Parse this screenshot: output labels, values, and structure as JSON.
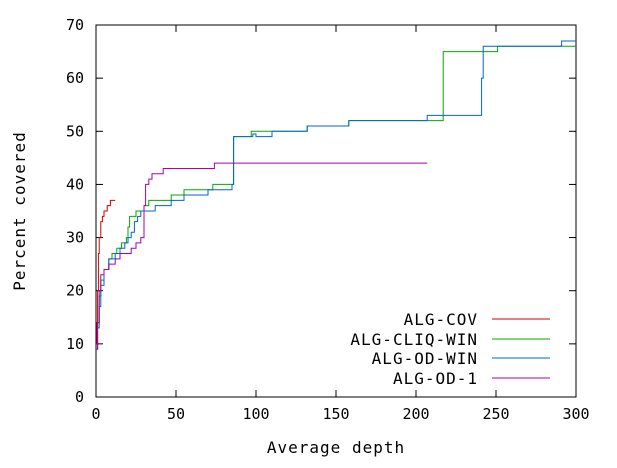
{
  "chart_data": {
    "type": "line",
    "step": true,
    "title": "",
    "xlabel": "Average depth",
    "ylabel": "Percent covered",
    "xlim": [
      0,
      300
    ],
    "ylim": [
      0,
      70
    ],
    "xticks": [
      0,
      50,
      100,
      150,
      200,
      250,
      300
    ],
    "yticks": [
      0,
      10,
      20,
      30,
      40,
      50,
      60,
      70
    ],
    "grid": false,
    "legend_position": "bottom-right",
    "series": [
      {
        "name": "ALG-COV",
        "color": "#cc0000",
        "points": [
          [
            0,
            10
          ],
          [
            0.5,
            14
          ],
          [
            1,
            20
          ],
          [
            1.5,
            27
          ],
          [
            2,
            30
          ],
          [
            3,
            33
          ],
          [
            4,
            34
          ],
          [
            5,
            35
          ],
          [
            7,
            36
          ],
          [
            9,
            37
          ],
          [
            12,
            37
          ]
        ]
      },
      {
        "name": "ALG-CLIQ-WIN",
        "color": "#00aa00",
        "points": [
          [
            0,
            9
          ],
          [
            1,
            14
          ],
          [
            2,
            19
          ],
          [
            3,
            22
          ],
          [
            5,
            24
          ],
          [
            8,
            26
          ],
          [
            10,
            27
          ],
          [
            13,
            28
          ],
          [
            16,
            29
          ],
          [
            19,
            30
          ],
          [
            20,
            32
          ],
          [
            21,
            34
          ],
          [
            25,
            35
          ],
          [
            30,
            36
          ],
          [
            33,
            37
          ],
          [
            40,
            37
          ],
          [
            47,
            38
          ],
          [
            55,
            39
          ],
          [
            65,
            39
          ],
          [
            73,
            40
          ],
          [
            85,
            40
          ],
          [
            86,
            49
          ],
          [
            95,
            49
          ],
          [
            97,
            50
          ],
          [
            130,
            50
          ],
          [
            132,
            51
          ],
          [
            157,
            51
          ],
          [
            158,
            52
          ],
          [
            216,
            52
          ],
          [
            217,
            65
          ],
          [
            250,
            65
          ],
          [
            251,
            66
          ],
          [
            300,
            66
          ]
        ]
      },
      {
        "name": "ALG-OD-WIN",
        "color": "#0066cc",
        "points": [
          [
            0,
            9
          ],
          [
            1,
            13
          ],
          [
            2,
            17
          ],
          [
            3,
            21
          ],
          [
            5,
            24
          ],
          [
            8,
            26
          ],
          [
            12,
            27
          ],
          [
            15,
            28
          ],
          [
            18,
            29
          ],
          [
            20,
            30
          ],
          [
            22,
            31
          ],
          [
            24,
            33
          ],
          [
            26,
            34
          ],
          [
            28,
            35
          ],
          [
            35,
            35
          ],
          [
            37,
            36
          ],
          [
            45,
            36
          ],
          [
            47,
            37
          ],
          [
            53,
            37
          ],
          [
            55,
            38
          ],
          [
            68,
            38
          ],
          [
            70,
            39
          ],
          [
            84,
            39
          ],
          [
            85,
            40
          ],
          [
            86,
            49
          ],
          [
            97,
            49
          ],
          [
            98,
            49.5
          ],
          [
            100,
            49
          ],
          [
            107,
            49
          ],
          [
            110,
            50
          ],
          [
            130,
            50
          ],
          [
            132,
            51
          ],
          [
            157,
            51
          ],
          [
            158,
            52
          ],
          [
            205,
            52
          ],
          [
            207,
            53
          ],
          [
            240,
            53
          ],
          [
            241,
            60
          ],
          [
            242,
            66
          ],
          [
            245,
            66
          ],
          [
            290,
            66
          ],
          [
            291,
            67
          ],
          [
            300,
            67
          ]
        ]
      },
      {
        "name": "ALG-OD-1",
        "color": "#aa00aa",
        "points": [
          [
            0,
            9
          ],
          [
            1,
            14
          ],
          [
            2,
            20
          ],
          [
            3,
            23
          ],
          [
            5,
            24
          ],
          [
            8,
            25
          ],
          [
            12,
            26
          ],
          [
            15,
            27
          ],
          [
            20,
            27
          ],
          [
            22,
            28
          ],
          [
            25,
            29
          ],
          [
            28,
            30
          ],
          [
            30,
            36
          ],
          [
            31,
            40
          ],
          [
            33,
            41
          ],
          [
            35,
            42
          ],
          [
            40,
            42
          ],
          [
            42,
            43
          ],
          [
            55,
            43
          ],
          [
            72,
            43
          ],
          [
            74,
            44
          ],
          [
            207,
            44
          ]
        ]
      }
    ]
  }
}
